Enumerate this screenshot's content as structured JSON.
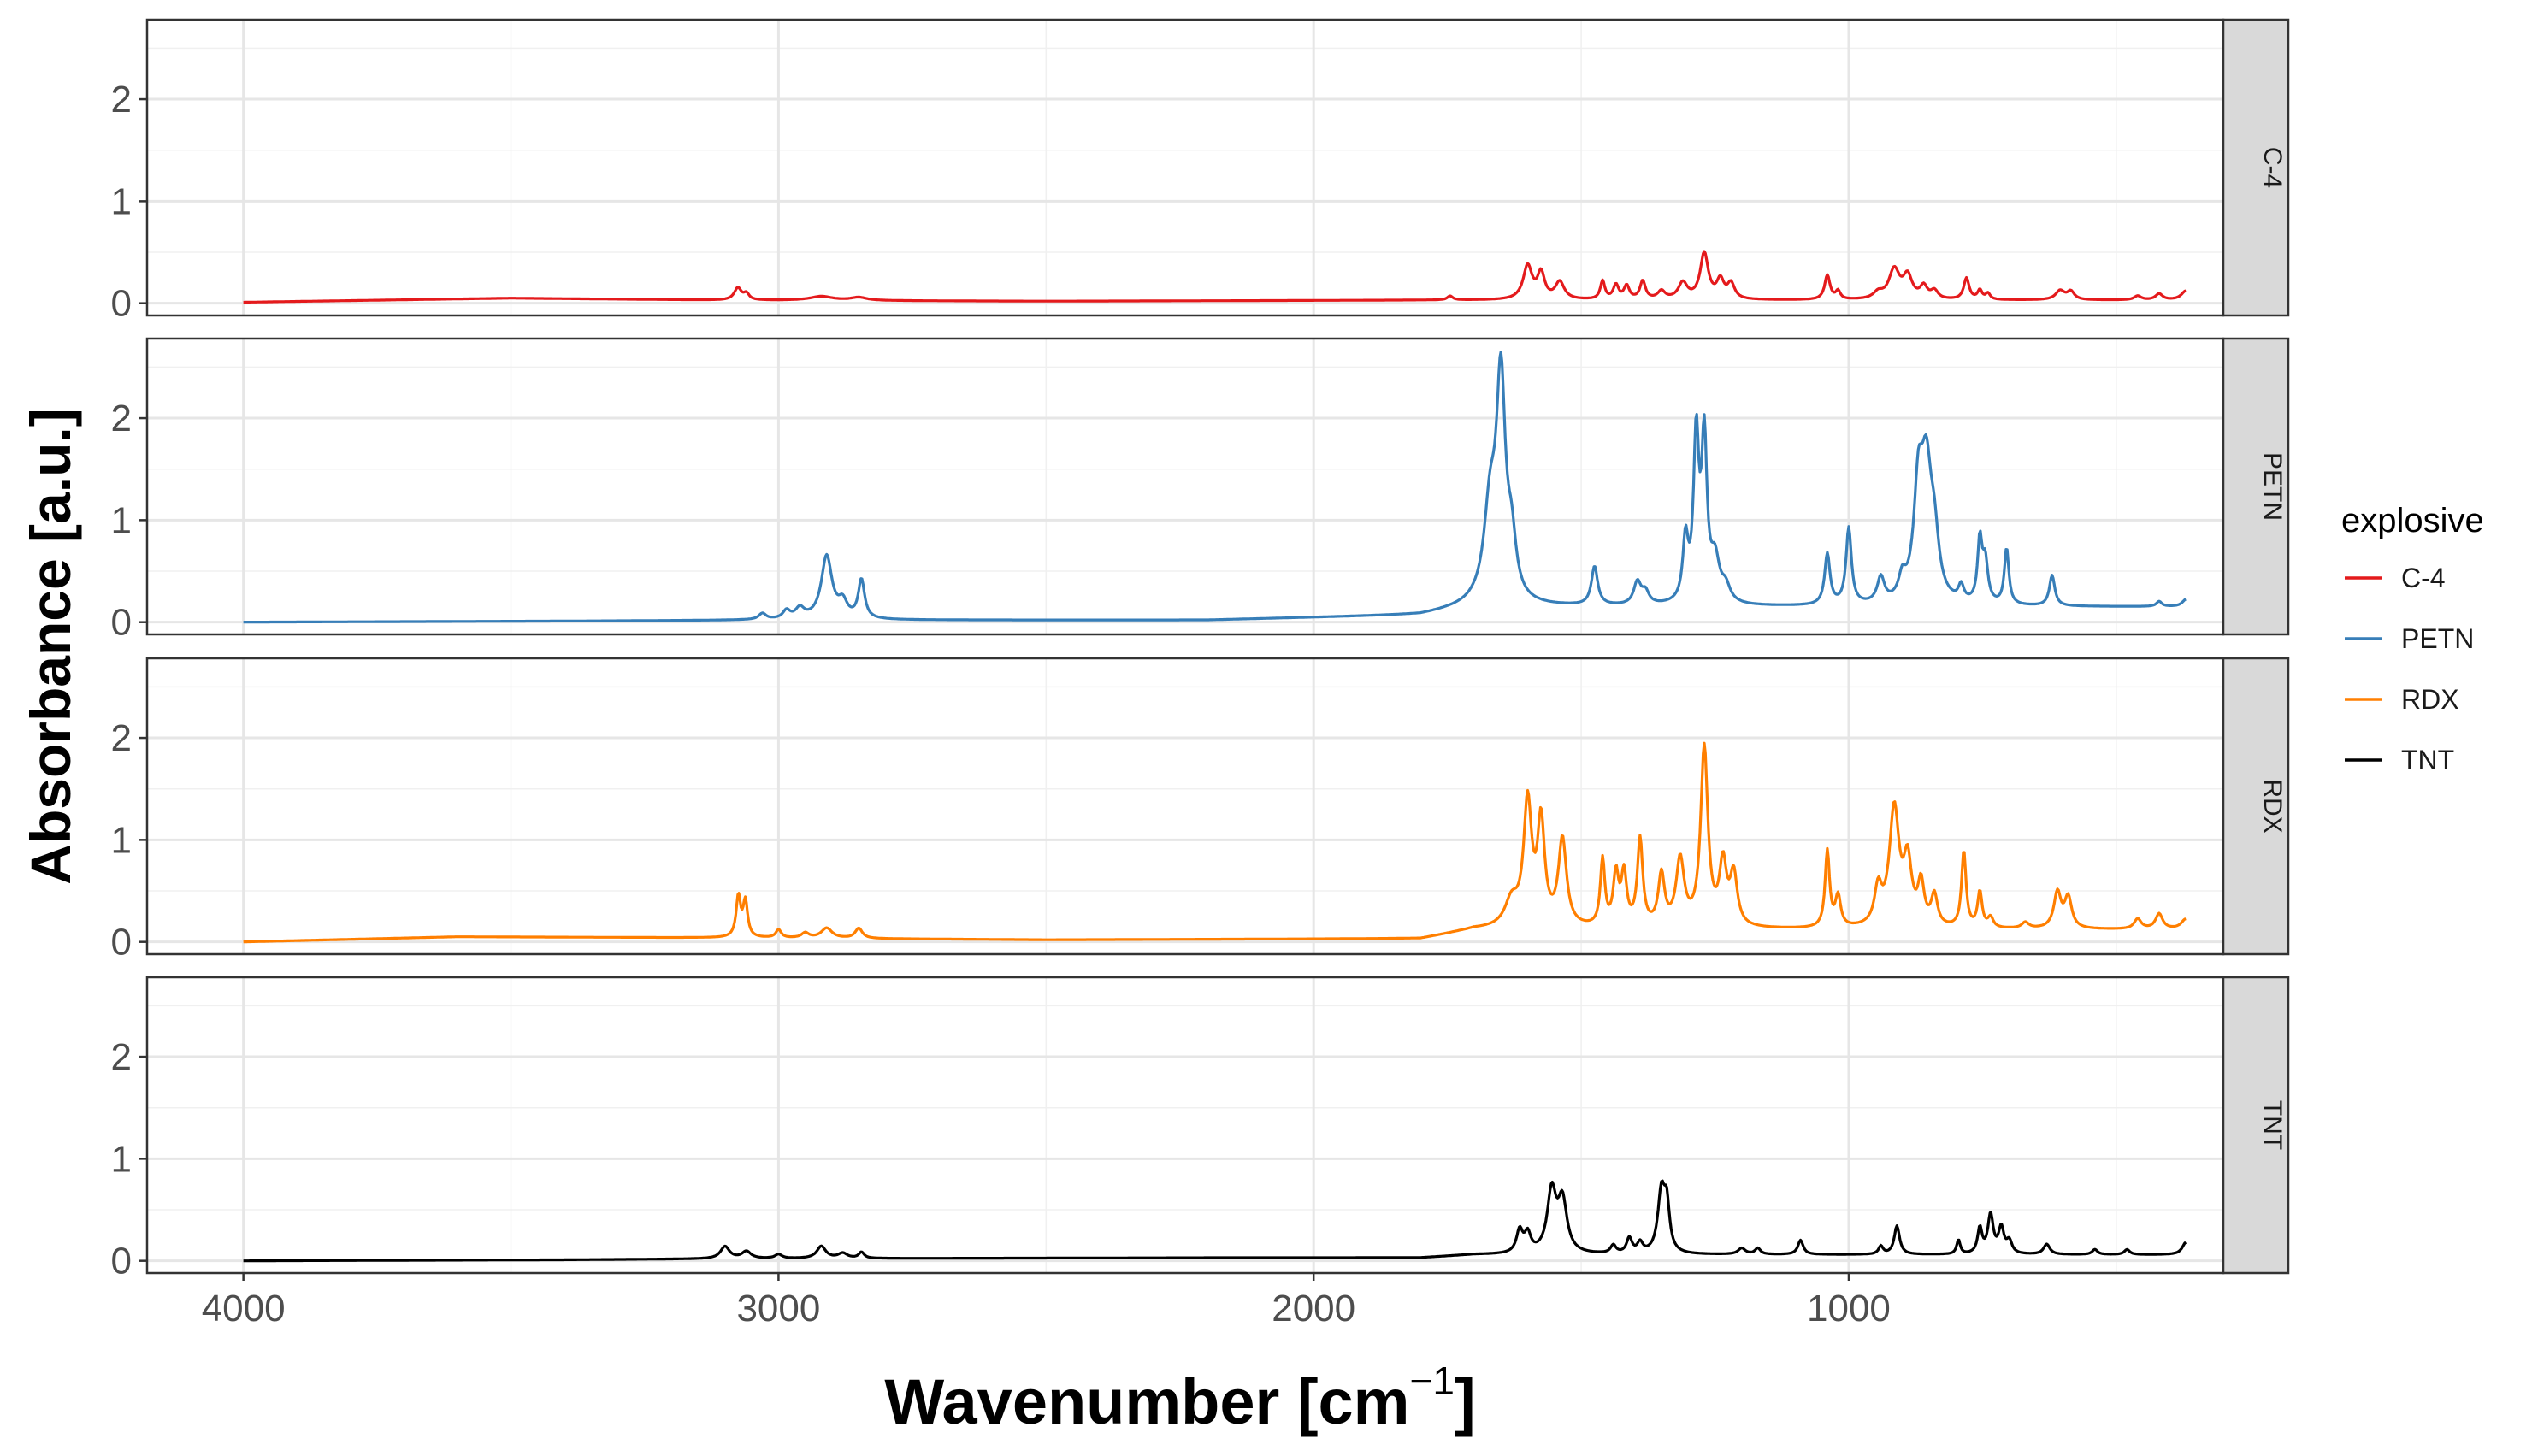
{
  "chart_data": {
    "type": "line",
    "facets": [
      "C-4",
      "PETN",
      "RDX",
      "TNT"
    ],
    "xlabel": "Wavenumber [cm",
    "xlabel_sup": "−1",
    "xlabel_close": "]",
    "ylabel": "Absorbance [a.u.]",
    "xlim": [
      4180,
      300
    ],
    "x_reversed": true,
    "ylim": [
      -0.12,
      2.78
    ],
    "x_ticks": [
      4000,
      3000,
      2000,
      1000
    ],
    "x_tick_labels": [
      "4000",
      "3000",
      "2000",
      "1000"
    ],
    "y_ticks": [
      0,
      1,
      2
    ],
    "y_tick_labels": [
      "0",
      "1",
      "2"
    ],
    "grid": true,
    "legend_title": "explosive",
    "legend_position": "right",
    "series": [
      {
        "name": "C-4",
        "color": "#e41a1c",
        "baseline": 0.01,
        "ramps": [
          [
            4000,
            0.0
          ],
          [
            3500,
            0.04
          ],
          [
            3100,
            0.02
          ],
          [
            2500,
            0.01
          ],
          [
            1800,
            0.02
          ]
        ],
        "peaks": [
          [
            3076,
            0.12,
            8
          ],
          [
            3060,
            0.06,
            6
          ],
          [
            2920,
            0.04,
            25
          ],
          [
            2850,
            0.03,
            18
          ],
          [
            1745,
            0.04,
            6
          ],
          [
            1600,
            0.33,
            10
          ],
          [
            1575,
            0.25,
            8
          ],
          [
            1540,
            0.17,
            10
          ],
          [
            1460,
            0.18,
            5
          ],
          [
            1435,
            0.14,
            6
          ],
          [
            1415,
            0.13,
            6
          ],
          [
            1385,
            0.18,
            6
          ],
          [
            1350,
            0.08,
            8
          ],
          [
            1310,
            0.16,
            10
          ],
          [
            1270,
            0.45,
            9
          ],
          [
            1240,
            0.18,
            8
          ],
          [
            1220,
            0.15,
            8
          ],
          [
            1040,
            0.24,
            6
          ],
          [
            1020,
            0.08,
            5
          ],
          [
            945,
            0.06,
            10
          ],
          [
            915,
            0.29,
            12
          ],
          [
            890,
            0.22,
            10
          ],
          [
            860,
            0.12,
            8
          ],
          [
            840,
            0.08,
            8
          ],
          [
            780,
            0.21,
            6
          ],
          [
            755,
            0.09,
            5
          ],
          [
            740,
            0.06,
            5
          ],
          [
            605,
            0.09,
            10
          ],
          [
            585,
            0.08,
            8
          ],
          [
            460,
            0.04,
            8
          ],
          [
            420,
            0.06,
            8
          ],
          [
            370,
            0.09,
            10
          ]
        ]
      },
      {
        "name": "PETN",
        "color": "#377eb8",
        "baseline": 0.0,
        "ramps": [
          [
            4000,
            0.0
          ],
          [
            3400,
            0.01
          ],
          [
            3000,
            0.02
          ],
          [
            2200,
            0.02
          ],
          [
            1800,
            0.07
          ],
          [
            1700,
            0.15
          ]
        ],
        "peaks": [
          [
            3030,
            0.06,
            8
          ],
          [
            2985,
            0.08,
            8
          ],
          [
            2960,
            0.1,
            10
          ],
          [
            2910,
            0.62,
            12
          ],
          [
            2880,
            0.15,
            10
          ],
          [
            2845,
            0.38,
            7
          ],
          [
            1670,
            0.9,
            14
          ],
          [
            1650,
            2.1,
            10
          ],
          [
            1630,
            0.5,
            10
          ],
          [
            1475,
            0.38,
            7
          ],
          [
            1395,
            0.22,
            8
          ],
          [
            1380,
            0.12,
            8
          ],
          [
            1305,
            0.6,
            6
          ],
          [
            1285,
            1.6,
            6
          ],
          [
            1270,
            1.55,
            6
          ],
          [
            1250,
            0.4,
            10
          ],
          [
            1230,
            0.15,
            10
          ],
          [
            1040,
            0.5,
            6
          ],
          [
            1000,
            0.75,
            6
          ],
          [
            940,
            0.25,
            8
          ],
          [
            900,
            0.2,
            8
          ],
          [
            870,
            1.0,
            10
          ],
          [
            855,
            1.2,
            12
          ],
          [
            840,
            0.5,
            10
          ],
          [
            790,
            0.15,
            6
          ],
          [
            755,
            0.6,
            5
          ],
          [
            745,
            0.4,
            6
          ],
          [
            705,
            0.55,
            5
          ],
          [
            620,
            0.3,
            6
          ],
          [
            420,
            0.05,
            6
          ],
          [
            370,
            0.07,
            8
          ]
        ]
      },
      {
        "name": "RDX",
        "color": "#ff7f00",
        "baseline": 0.0,
        "ramps": [
          [
            4000,
            0.0
          ],
          [
            3600,
            0.05
          ],
          [
            3100,
            0.04
          ],
          [
            2500,
            0.02
          ],
          [
            1800,
            0.03
          ],
          [
            1700,
            0.12
          ]
        ],
        "peaks": [
          [
            3075,
            0.4,
            5
          ],
          [
            3062,
            0.35,
            5
          ],
          [
            3000,
            0.08,
            6
          ],
          [
            2950,
            0.05,
            8
          ],
          [
            2910,
            0.1,
            12
          ],
          [
            2850,
            0.1,
            8
          ],
          [
            1630,
            0.25,
            15
          ],
          [
            1600,
            1.2,
            9
          ],
          [
            1575,
            1.0,
            8
          ],
          [
            1535,
            0.85,
            9
          ],
          [
            1460,
            0.65,
            5
          ],
          [
            1435,
            0.5,
            6
          ],
          [
            1420,
            0.5,
            6
          ],
          [
            1390,
            0.85,
            6
          ],
          [
            1350,
            0.5,
            7
          ],
          [
            1315,
            0.65,
            9
          ],
          [
            1270,
            1.75,
            8
          ],
          [
            1235,
            0.6,
            8
          ],
          [
            1215,
            0.5,
            8
          ],
          [
            1040,
            0.75,
            5
          ],
          [
            1020,
            0.3,
            6
          ],
          [
            945,
            0.35,
            8
          ],
          [
            915,
            1.15,
            11
          ],
          [
            890,
            0.6,
            9
          ],
          [
            865,
            0.4,
            7
          ],
          [
            840,
            0.3,
            7
          ],
          [
            785,
            0.75,
            5
          ],
          [
            755,
            0.35,
            5
          ],
          [
            735,
            0.1,
            6
          ],
          [
            670,
            0.06,
            8
          ],
          [
            610,
            0.35,
            8
          ],
          [
            590,
            0.3,
            8
          ],
          [
            460,
            0.1,
            8
          ],
          [
            420,
            0.15,
            8
          ],
          [
            370,
            0.1,
            10
          ]
        ]
      },
      {
        "name": "TNT",
        "color": "#000000",
        "baseline": 0.0,
        "ramps": [
          [
            4000,
            0.0
          ],
          [
            3400,
            0.01
          ],
          [
            3100,
            0.02
          ],
          [
            2200,
            0.03
          ],
          [
            1800,
            0.03
          ],
          [
            1700,
            0.06
          ]
        ],
        "peaks": [
          [
            3100,
            0.12,
            10
          ],
          [
            3060,
            0.07,
            10
          ],
          [
            3000,
            0.04,
            8
          ],
          [
            2920,
            0.12,
            10
          ],
          [
            2880,
            0.05,
            10
          ],
          [
            2845,
            0.06,
            6
          ],
          [
            1615,
            0.22,
            7
          ],
          [
            1600,
            0.18,
            7
          ],
          [
            1555,
            0.6,
            10
          ],
          [
            1535,
            0.5,
            10
          ],
          [
            1440,
            0.08,
            6
          ],
          [
            1410,
            0.15,
            6
          ],
          [
            1390,
            0.1,
            6
          ],
          [
            1350,
            0.6,
            8
          ],
          [
            1340,
            0.42,
            6
          ],
          [
            1200,
            0.06,
            8
          ],
          [
            1170,
            0.06,
            6
          ],
          [
            1090,
            0.14,
            6
          ],
          [
            940,
            0.08,
            5
          ],
          [
            910,
            0.28,
            6
          ],
          [
            795,
            0.14,
            4
          ],
          [
            755,
            0.25,
            5
          ],
          [
            735,
            0.38,
            6
          ],
          [
            715,
            0.25,
            6
          ],
          [
            700,
            0.12,
            6
          ],
          [
            630,
            0.1,
            7
          ],
          [
            540,
            0.05,
            6
          ],
          [
            480,
            0.05,
            6
          ],
          [
            370,
            0.12,
            8
          ]
        ]
      }
    ]
  }
}
